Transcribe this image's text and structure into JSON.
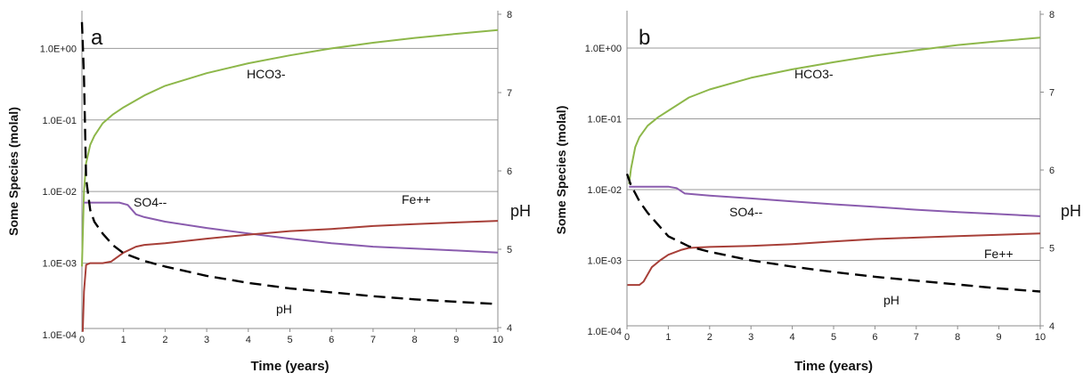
{
  "chart_data": [
    {
      "type": "line",
      "panel_label": "a",
      "xlabel": "Time (years)",
      "ylabel": "Some Species (molal)",
      "y2label": "pH",
      "xlim": [
        0,
        10
      ],
      "ylim": [
        0.0001,
        3.0
      ],
      "y_scale": "log",
      "y2lim": [
        4,
        8
      ],
      "x_ticks": [
        "0",
        "1",
        "2",
        "3",
        "4",
        "5",
        "6",
        "7",
        "8",
        "9",
        "10"
      ],
      "y_ticks": [
        "1.0E-04",
        "1.0E-03",
        "1.0E-02",
        "1.0E-01",
        "1.0E+00"
      ],
      "y2_ticks": [
        "4",
        "5",
        "6",
        "7",
        "8"
      ],
      "grid": "horizontal",
      "colors": {
        "HCO3-": "#8db74a",
        "SO4--": "#8a5cae",
        "Fe++": "#a73f38",
        "pH": "#000000"
      },
      "series": [
        {
          "name": "HCO3-",
          "axis": "left",
          "x": [
            0,
            0.05,
            0.1,
            0.2,
            0.3,
            0.5,
            0.75,
            1,
            1.5,
            2,
            3,
            4,
            5,
            6,
            7,
            8,
            9,
            10
          ],
          "values": [
            0.0009,
            0.01,
            0.025,
            0.045,
            0.06,
            0.09,
            0.12,
            0.15,
            0.22,
            0.3,
            0.45,
            0.62,
            0.8,
            1.0,
            1.2,
            1.4,
            1.6,
            1.8
          ]
        },
        {
          "name": "SO4--",
          "axis": "left",
          "x": [
            0.05,
            0.1,
            0.9,
            1.1,
            1.3,
            1.5,
            2,
            3,
            4,
            5,
            6,
            7,
            8,
            9,
            10
          ],
          "values": [
            0.007,
            0.007,
            0.007,
            0.0065,
            0.0048,
            0.0044,
            0.0038,
            0.0031,
            0.0026,
            0.0022,
            0.0019,
            0.0017,
            0.0016,
            0.0015,
            0.0014
          ]
        },
        {
          "name": "Fe++",
          "axis": "left",
          "x": [
            0.02,
            0.05,
            0.1,
            0.2,
            0.3,
            0.5,
            0.7,
            1,
            1.3,
            1.5,
            2,
            3,
            4,
            5,
            6,
            7,
            8,
            9,
            10
          ],
          "values": [
            0.00011,
            0.0004,
            0.00095,
            0.001,
            0.001,
            0.001,
            0.00105,
            0.0014,
            0.0017,
            0.0018,
            0.0019,
            0.0022,
            0.0025,
            0.0028,
            0.003,
            0.0033,
            0.0035,
            0.0037,
            0.0039
          ]
        },
        {
          "name": "pH",
          "axis": "right",
          "dashed": true,
          "x": [
            0,
            0.05,
            0.1,
            0.2,
            0.3,
            0.5,
            0.75,
            1,
            1.5,
            2,
            3,
            4,
            5,
            6,
            7,
            8,
            9,
            10
          ],
          "values": [
            7.9,
            7.2,
            5.9,
            5.5,
            5.35,
            5.2,
            5.05,
            4.95,
            4.85,
            4.78,
            4.66,
            4.57,
            4.5,
            4.45,
            4.4,
            4.36,
            4.33,
            4.3
          ]
        }
      ],
      "annotations": [
        "HCO3-",
        "SO4--",
        "Fe++",
        "pH"
      ]
    },
    {
      "type": "line",
      "panel_label": "b",
      "xlabel": "Time (years)",
      "ylabel": "Some Species (molal)",
      "y2label": "pH",
      "xlim": [
        0,
        10
      ],
      "ylim": [
        0.0001,
        3.0
      ],
      "y_scale": "log",
      "y2lim": [
        4,
        8
      ],
      "x_ticks": [
        "0",
        "1",
        "2",
        "3",
        "4",
        "5",
        "6",
        "7",
        "8",
        "9",
        "10"
      ],
      "y_ticks": [
        "1.0E-04",
        "1.0E-03",
        "1.0E-02",
        "1.0E-01",
        "1.0E+00"
      ],
      "y2_ticks": [
        "4",
        "5",
        "6",
        "7",
        "8"
      ],
      "grid": "horizontal",
      "colors": {
        "HCO3-": "#8db74a",
        "SO4--": "#8a5cae",
        "Fe++": "#a73f38",
        "pH": "#000000"
      },
      "series": [
        {
          "name": "HCO3-",
          "axis": "left",
          "x": [
            0.05,
            0.1,
            0.2,
            0.3,
            0.5,
            0.75,
            1,
            1.5,
            2,
            3,
            4,
            5,
            6,
            7,
            8,
            9,
            10
          ],
          "values": [
            0.012,
            0.02,
            0.04,
            0.055,
            0.08,
            0.105,
            0.13,
            0.2,
            0.26,
            0.38,
            0.5,
            0.63,
            0.78,
            0.93,
            1.1,
            1.25,
            1.4
          ]
        },
        {
          "name": "SO4--",
          "axis": "left",
          "x": [
            0.05,
            0.1,
            1.0,
            1.2,
            1.4,
            2,
            3,
            4,
            5,
            6,
            7,
            8,
            9,
            10
          ],
          "values": [
            0.011,
            0.011,
            0.011,
            0.0105,
            0.0088,
            0.0082,
            0.0075,
            0.0068,
            0.0062,
            0.0057,
            0.0052,
            0.0048,
            0.0045,
            0.0042
          ]
        },
        {
          "name": "Fe++",
          "axis": "left",
          "x": [
            0.01,
            0.3,
            0.4,
            0.6,
            0.8,
            1,
            1.3,
            1.5,
            2,
            3,
            4,
            5,
            6,
            7,
            8,
            9,
            10
          ],
          "values": [
            0.00045,
            0.00045,
            0.0005,
            0.0008,
            0.001,
            0.0012,
            0.0014,
            0.0015,
            0.00155,
            0.0016,
            0.0017,
            0.00185,
            0.002,
            0.0021,
            0.0022,
            0.0023,
            0.0024
          ]
        },
        {
          "name": "pH",
          "axis": "right",
          "dashed": true,
          "x": [
            0,
            0.1,
            0.2,
            0.3,
            0.5,
            0.75,
            1,
            1.5,
            2,
            3,
            4,
            5,
            6,
            7,
            8,
            9,
            10
          ],
          "values": [
            5.95,
            5.8,
            5.7,
            5.6,
            5.45,
            5.3,
            5.15,
            5.02,
            4.95,
            4.84,
            4.76,
            4.69,
            4.63,
            4.58,
            4.53,
            4.48,
            4.44
          ]
        }
      ],
      "annotations": [
        "HCO3-",
        "SO4--",
        "Fe++",
        "pH"
      ]
    }
  ]
}
